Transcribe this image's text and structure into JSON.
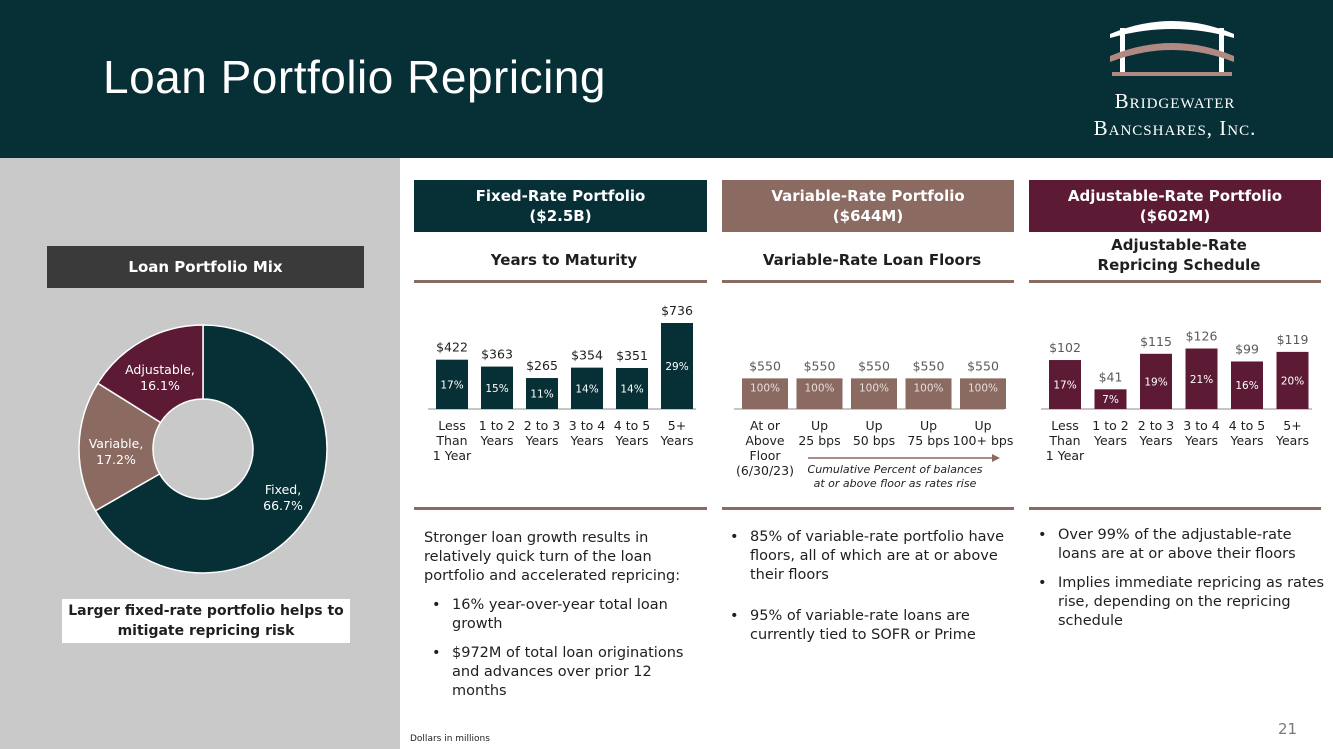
{
  "header": {
    "title": "Loan Portfolio Repricing",
    "logo_line1": "Bridgewater",
    "logo_line2": "Bancshares, Inc."
  },
  "mix": {
    "title": "Loan Portfolio Mix",
    "callout": "Larger fixed-rate portfolio helps to mitigate repricing risk",
    "slices": [
      {
        "name": "Fixed",
        "value": 66.7,
        "label": "Fixed,",
        "pct": "66.7%",
        "color": "#072f36"
      },
      {
        "name": "Variable",
        "value": 17.2,
        "label": "Variable,",
        "pct": "17.2%",
        "color": "#8a6a61"
      },
      {
        "name": "Adjustable",
        "value": 16.1,
        "label": "Adjustable,",
        "pct": "16.1%",
        "color": "#5c1a34"
      }
    ]
  },
  "portfolios": {
    "fixed": {
      "title": "Fixed-Rate Portfolio",
      "amount": "($2.5B)",
      "sub": "Years to Maturity"
    },
    "variable": {
      "title": "Variable-Rate Portfolio",
      "amount": "($644M)",
      "sub": "Variable-Rate Loan Floors"
    },
    "adjustable": {
      "title": "Adjustable-Rate Portfolio",
      "amount": "($602M)",
      "sub_l1": "Adjustable-Rate",
      "sub_l2": "Repricing Schedule"
    }
  },
  "chart_data": [
    {
      "type": "bar",
      "title": "Years to Maturity",
      "color": "#072f36",
      "categories": [
        [
          "Less",
          "Than",
          "1 Year"
        ],
        [
          "1 to 2",
          "Years"
        ],
        [
          "2 to 3",
          "Years"
        ],
        [
          "3 to 4",
          "Years"
        ],
        [
          "4 to 5",
          "Years"
        ],
        [
          "5+",
          "Years"
        ]
      ],
      "values": [
        422,
        363,
        265,
        354,
        351,
        736
      ],
      "value_labels": [
        "$422",
        "$363",
        "$265",
        "$354",
        "$351",
        "$736"
      ],
      "pct_labels": [
        "17%",
        "15%",
        "11%",
        "14%",
        "14%",
        "29%"
      ],
      "ylim": [
        0,
        736
      ]
    },
    {
      "type": "bar",
      "title": "Variable-Rate Loan Floors",
      "color": "#8a6a61",
      "categories": [
        [
          "At or",
          "Above",
          "Floor",
          "(6/30/23)"
        ],
        [
          "Up",
          "25 bps"
        ],
        [
          "Up",
          "50 bps"
        ],
        [
          "Up",
          "75 bps"
        ],
        [
          "Up",
          "100+ bps"
        ]
      ],
      "values": [
        550,
        550,
        550,
        550,
        550
      ],
      "value_labels": [
        "$550",
        "$550",
        "$550",
        "$550",
        "$550"
      ],
      "pct_labels": [
        "100%",
        "100%",
        "100%",
        "100%",
        "100%"
      ],
      "ylim": [
        0,
        736
      ],
      "annotation": [
        "Cumulative Percent of balances",
        "at or above floor as rates rise"
      ]
    },
    {
      "type": "bar",
      "title": "Adjustable-Rate Repricing Schedule",
      "color": "#5c1a34",
      "categories": [
        [
          "Less",
          "Than",
          "1 Year"
        ],
        [
          "1 to 2",
          "Years"
        ],
        [
          "2 to 3",
          "Years"
        ],
        [
          "3 to 4",
          "Years"
        ],
        [
          "4 to 5",
          "Years"
        ],
        [
          "5+",
          "Years"
        ]
      ],
      "values": [
        102,
        41,
        115,
        126,
        99,
        119
      ],
      "value_labels": [
        "$102",
        "$41",
        "$115",
        "$126",
        "$99",
        "$119"
      ],
      "pct_labels": [
        "17%",
        "7%",
        "19%",
        "21%",
        "16%",
        "20%"
      ],
      "ylim": [
        0,
        250
      ]
    }
  ],
  "text": {
    "fixed_intro": "Stronger loan growth results in relatively quick turn of the loan portfolio and accelerated repricing:",
    "fixed_bullets": [
      "16% year-over-year total loan growth",
      "$972M of total loan originations and advances over prior 12 months"
    ],
    "variable_bullets": [
      "85% of variable-rate portfolio have floors, all of which are at or above their floors",
      "95% of variable-rate loans are currently tied to SOFR or Prime"
    ],
    "adjustable_bullets": [
      "Over 99% of the adjustable-rate loans are at or above their floors",
      "Implies immediate repricing as rates rise, depending on the repricing schedule"
    ]
  },
  "footer": {
    "note": "Dollars in millions",
    "page": "21"
  }
}
